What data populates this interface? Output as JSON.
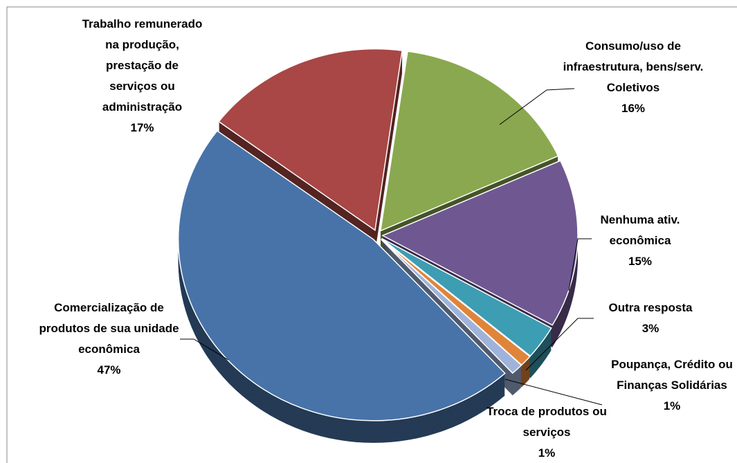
{
  "chart_data": {
    "type": "pie",
    "categories": [
      "Consumo/uso de infraestrutura, bens/serv. Coletivos",
      "Nenhuma ativ. econômica",
      "Outra resposta",
      "Poupança, Crédito ou Finanças Solidárias",
      "Troca de produtos ou serviços",
      "Comercialização de produtos de sua unidade econômica",
      "Trabalho remunerado na produção, prestação de serviços ou administração"
    ],
    "values": [
      16,
      15,
      3,
      1,
      1,
      47,
      17
    ],
    "value_labels": [
      "16%",
      "15%",
      "3%",
      "1%",
      "1%",
      "47%",
      "17%"
    ],
    "colors": [
      "#8aa84f",
      "#6f5892",
      "#3d9db3",
      "#e0843a",
      "#9fb3da",
      "#4773a9",
      "#a84745"
    ]
  }
}
